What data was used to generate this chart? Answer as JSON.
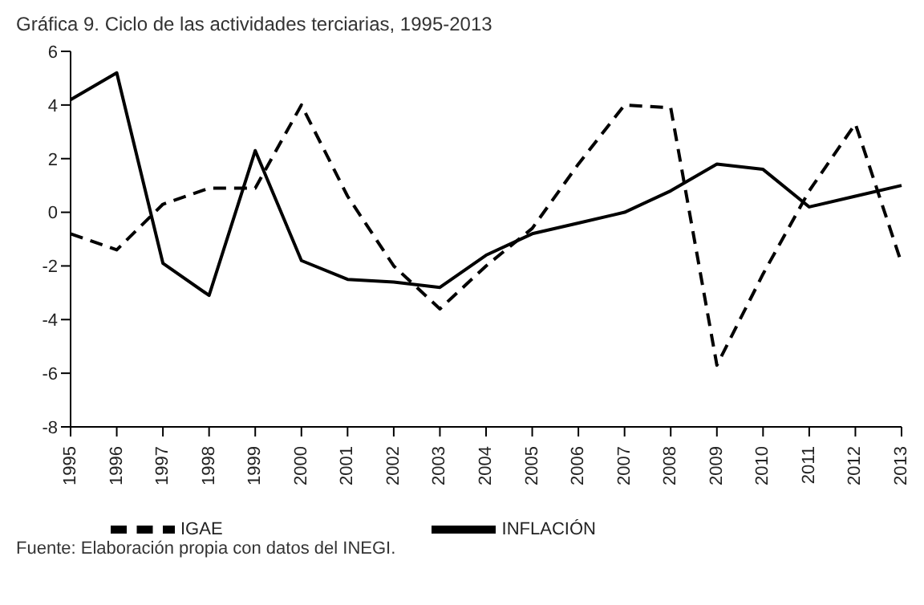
{
  "chart_data": {
    "type": "line",
    "title": "Gráfica 9. Ciclo de las actividades terciarias, 1995-2013",
    "categories": [
      "1995",
      "1996",
      "1997",
      "1998",
      "1999",
      "2000",
      "2001",
      "2002",
      "2003",
      "2004",
      "2005",
      "2006",
      "2007",
      "2008",
      "2009",
      "2010",
      "2011",
      "2012",
      "2013"
    ],
    "series": [
      {
        "name": "IGAE",
        "color": "#000000",
        "line_style": "dashed",
        "values": [
          -0.8,
          -1.4,
          0.3,
          0.9,
          0.9,
          4.0,
          0.6,
          -2.0,
          -3.6,
          -2.0,
          -0.6,
          1.8,
          4.0,
          3.9,
          -5.7,
          -2.3,
          0.8,
          3.3,
          -1.9
        ]
      },
      {
        "name": "INFLACIÓN",
        "color": "#000000",
        "line_style": "solid",
        "values": [
          4.2,
          5.2,
          -1.9,
          -3.1,
          2.3,
          -1.8,
          -2.5,
          -2.6,
          -2.8,
          -1.6,
          -0.8,
          -0.4,
          0.0,
          0.8,
          1.8,
          1.6,
          0.2,
          0.6,
          1.0
        ]
      }
    ],
    "ylim": [
      -8,
      6
    ],
    "yticks": [
      -8,
      -6,
      -4,
      -2,
      0,
      2,
      4,
      6
    ],
    "grid": false,
    "legend": "bottom",
    "marker": "none",
    "annotations": [
      "Fuente: Elaboración propia con datos del INEGI."
    ]
  }
}
